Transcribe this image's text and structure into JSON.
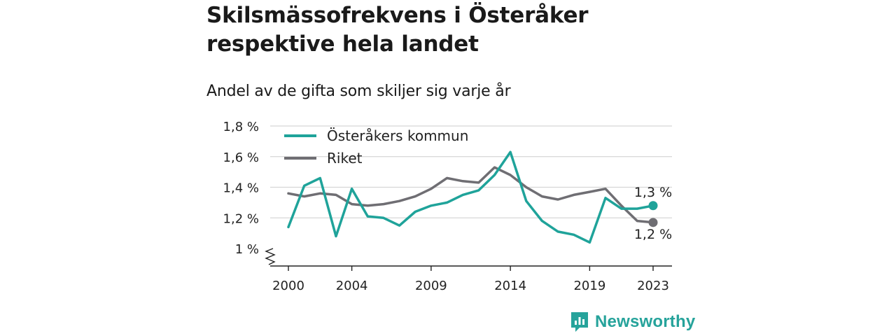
{
  "header": {
    "title": "Skilsmässofrekvens i Österåker respektive hela landet",
    "subtitle": "Andel av de gifta som skiljer sig varje år"
  },
  "brand": {
    "name": "Newsworthy",
    "icon": "bar-chart-logo-icon",
    "color": "#26a39b"
  },
  "chart_data": {
    "type": "line",
    "title": "Skilsmässofrekvens i Österåker respektive hela landet",
    "subtitle": "Andel av de gifta som skiljer sig varje år",
    "xlabel": "",
    "ylabel": "",
    "x": [
      2000,
      2001,
      2002,
      2003,
      2004,
      2005,
      2006,
      2007,
      2008,
      2009,
      2010,
      2011,
      2012,
      2013,
      2014,
      2015,
      2016,
      2017,
      2018,
      2019,
      2020,
      2021,
      2022,
      2023
    ],
    "x_tick_values": [
      2000,
      2004,
      2009,
      2014,
      2019,
      2023
    ],
    "x_tick_labels": [
      "2000",
      "2004",
      "2009",
      "2014",
      "2019",
      "2023"
    ],
    "y_tick_values": [
      1.0,
      1.2,
      1.4,
      1.6,
      1.8
    ],
    "y_tick_labels": [
      "1 %",
      "1,2 %",
      "1,4 %",
      "1,6 %",
      "1,8 %"
    ],
    "ylim": [
      1.0,
      1.8
    ],
    "y_axis_break": true,
    "grid": true,
    "legend": "top-left",
    "series": [
      {
        "name": "Österåkers kommun",
        "color": "#1fa39a",
        "values": [
          1.14,
          1.41,
          1.46,
          1.08,
          1.39,
          1.21,
          1.2,
          1.15,
          1.24,
          1.28,
          1.3,
          1.35,
          1.38,
          1.48,
          1.63,
          1.31,
          1.18,
          1.11,
          1.09,
          1.04,
          1.33,
          1.26,
          1.26,
          1.28
        ],
        "end_label": "1,3 %"
      },
      {
        "name": "Riket",
        "color": "#6f6e73",
        "values": [
          1.36,
          1.34,
          1.36,
          1.35,
          1.29,
          1.28,
          1.29,
          1.31,
          1.34,
          1.39,
          1.46,
          1.44,
          1.43,
          1.53,
          1.48,
          1.4,
          1.34,
          1.32,
          1.35,
          1.37,
          1.39,
          1.28,
          1.18,
          1.17
        ],
        "end_label": "1,2 %"
      }
    ]
  }
}
